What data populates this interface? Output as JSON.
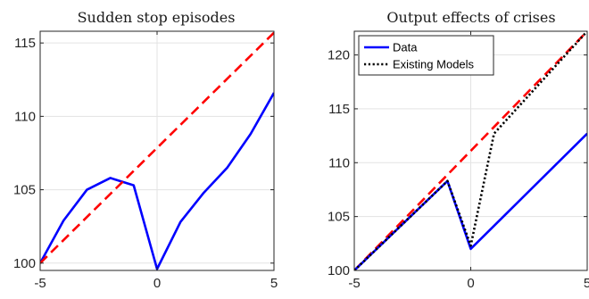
{
  "chart_data": [
    {
      "type": "line",
      "title": "Sudden stop episodes",
      "xlabel": "",
      "ylabel": "",
      "xlim": [
        -5,
        5
      ],
      "ylim": [
        99.5,
        115.8
      ],
      "xticks": [
        -5,
        0,
        5
      ],
      "yticks": [
        100,
        105,
        110,
        115
      ],
      "grid": true,
      "legend": null,
      "series": [
        {
          "style": "solid",
          "color": "#0000ff",
          "x": [
            -5,
            -4,
            -3,
            -2,
            -1,
            0,
            1,
            2,
            3,
            4,
            5
          ],
          "y": [
            100.0,
            102.9,
            105.0,
            105.8,
            105.3,
            99.6,
            102.8,
            104.8,
            106.5,
            108.8,
            111.6
          ]
        },
        {
          "style": "dashed",
          "color": "#ff0000",
          "x": [
            -5,
            5
          ],
          "y": [
            100.0,
            115.7
          ]
        }
      ]
    },
    {
      "type": "line",
      "title": "Output effects of crises",
      "xlabel": "",
      "ylabel": "",
      "xlim": [
        -5,
        5
      ],
      "ylim": [
        100,
        122.2
      ],
      "xticks": [
        -5,
        0,
        5
      ],
      "yticks": [
        100,
        105,
        110,
        115,
        120
      ],
      "grid": true,
      "legend": "top-left",
      "series": [
        {
          "style": "dashed",
          "color": "#ff0000",
          "x": [
            -5,
            5
          ],
          "y": [
            100.0,
            122.2
          ]
        },
        {
          "name": "Data",
          "style": "solid",
          "color": "#0000ff",
          "x": [
            -5,
            -1,
            0,
            5
          ],
          "y": [
            100.0,
            108.3,
            102.0,
            112.7
          ]
        },
        {
          "name": "Existing Models",
          "style": "dotted",
          "color": "#000000",
          "x": [
            -5,
            -1,
            0,
            1,
            5
          ],
          "y": [
            100.0,
            108.3,
            102.3,
            112.7,
            122.2
          ]
        }
      ]
    }
  ]
}
